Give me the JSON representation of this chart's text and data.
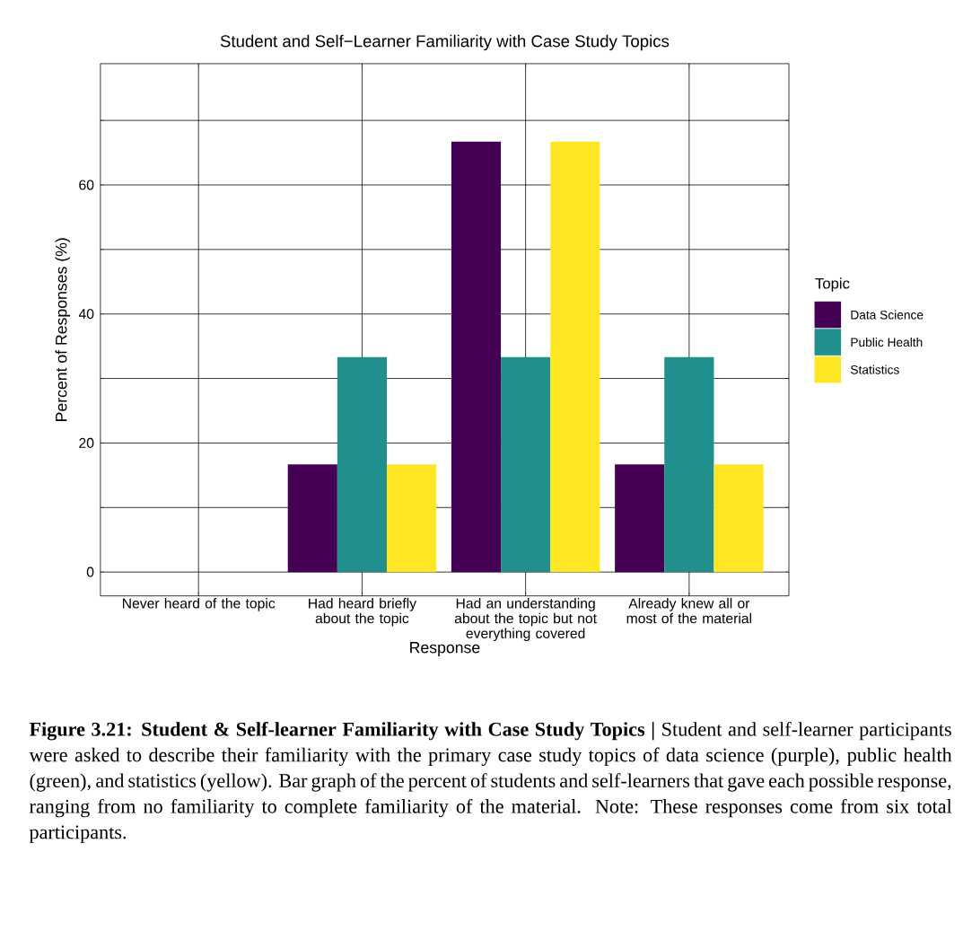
{
  "chart_data": {
    "type": "bar",
    "title": "Student and Self−Learner Familiarity with Case Study Topics",
    "xlabel": "Response",
    "ylabel": "Percent of Responses (%)",
    "legend_title": "Topic",
    "categories": [
      "Never heard of the topic",
      "Had heard briefly about the topic",
      "Had an understanding about the topic but not everything covered",
      "Already knew all or most of the material"
    ],
    "series": [
      {
        "name": "Data Science",
        "color": "#440154",
        "values": [
          0,
          16.7,
          66.7,
          16.7
        ]
      },
      {
        "name": "Public Health",
        "color": "#21908c",
        "values": [
          0,
          33.3,
          33.3,
          33.3
        ]
      },
      {
        "name": "Statistics",
        "color": "#fde725",
        "values": [
          0,
          16.7,
          66.7,
          16.7
        ]
      }
    ],
    "ylim": [
      -3.7,
      78.8
    ],
    "yticks": [
      0,
      {
        "value": 10,
        "label": null
      },
      20,
      {
        "value": 30,
        "label": null
      },
      40,
      {
        "value": 50,
        "label": null
      },
      60,
      {
        "value": 70,
        "label": null
      }
    ],
    "grid": true,
    "legend": "right",
    "annotations": [
      "**Figure 3.21: Student & Self-learner Familiarity with Case Study Topics |** Student and self-learner participants were asked to describe their familiarity with the primary case study topics of data science (purple), public health (green), and statistics (yellow). Bar graph of the percent of students and self-learners that gave each possible response, ranging from no familiarity to complete familiarity of the material. Note: These responses come from six total participants."
    ]
  }
}
